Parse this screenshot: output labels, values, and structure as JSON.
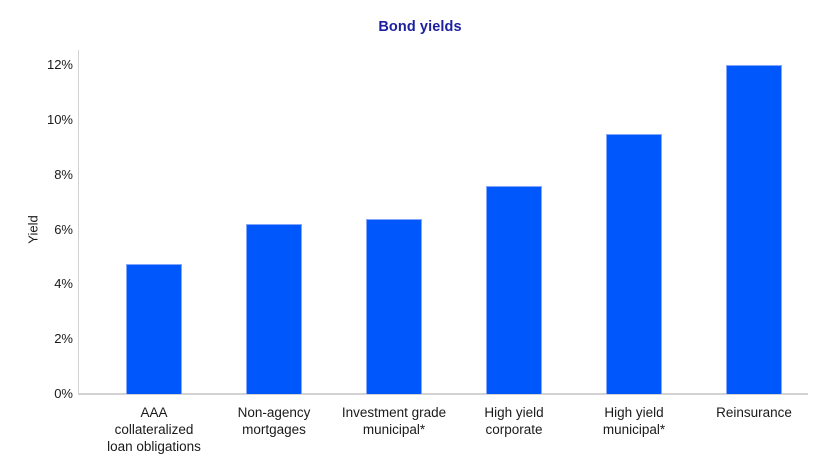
{
  "chart_data": {
    "type": "bar",
    "title": "Bond yields",
    "ylabel": "Yield",
    "xlabel": "",
    "categories": [
      "AAA collateralized loan obligations",
      "Non-agency mortgages",
      "Investment grade municipal*",
      "High yield corporate",
      "High yield municipal*",
      "Reinsurance"
    ],
    "categories_wrapped": [
      "AAA\ncollateralized\nloan obligations",
      "Non-agency\nmortgages",
      "Investment grade\nmunicipal*",
      "High yield\ncorporate",
      "High yield\nmunicipal*",
      "Reinsurance"
    ],
    "values": [
      4.75,
      6.2,
      6.4,
      7.6,
      9.5,
      12.0
    ],
    "unit": "%",
    "ylim": [
      0,
      12
    ],
    "ytick_values": [
      0,
      2,
      4,
      6,
      8,
      10,
      12
    ],
    "ytick_labels": [
      "0%",
      "2%",
      "4%",
      "6%",
      "8%",
      "10%",
      "12%"
    ],
    "grid": false,
    "legend": false,
    "colors": {
      "bar_fill": "#0057fb",
      "bar_edge": "#84a7fb",
      "title_text": "#1c1f9f",
      "axis_text": "#1a1a1a",
      "axis_line": "#d2d2d2"
    }
  }
}
